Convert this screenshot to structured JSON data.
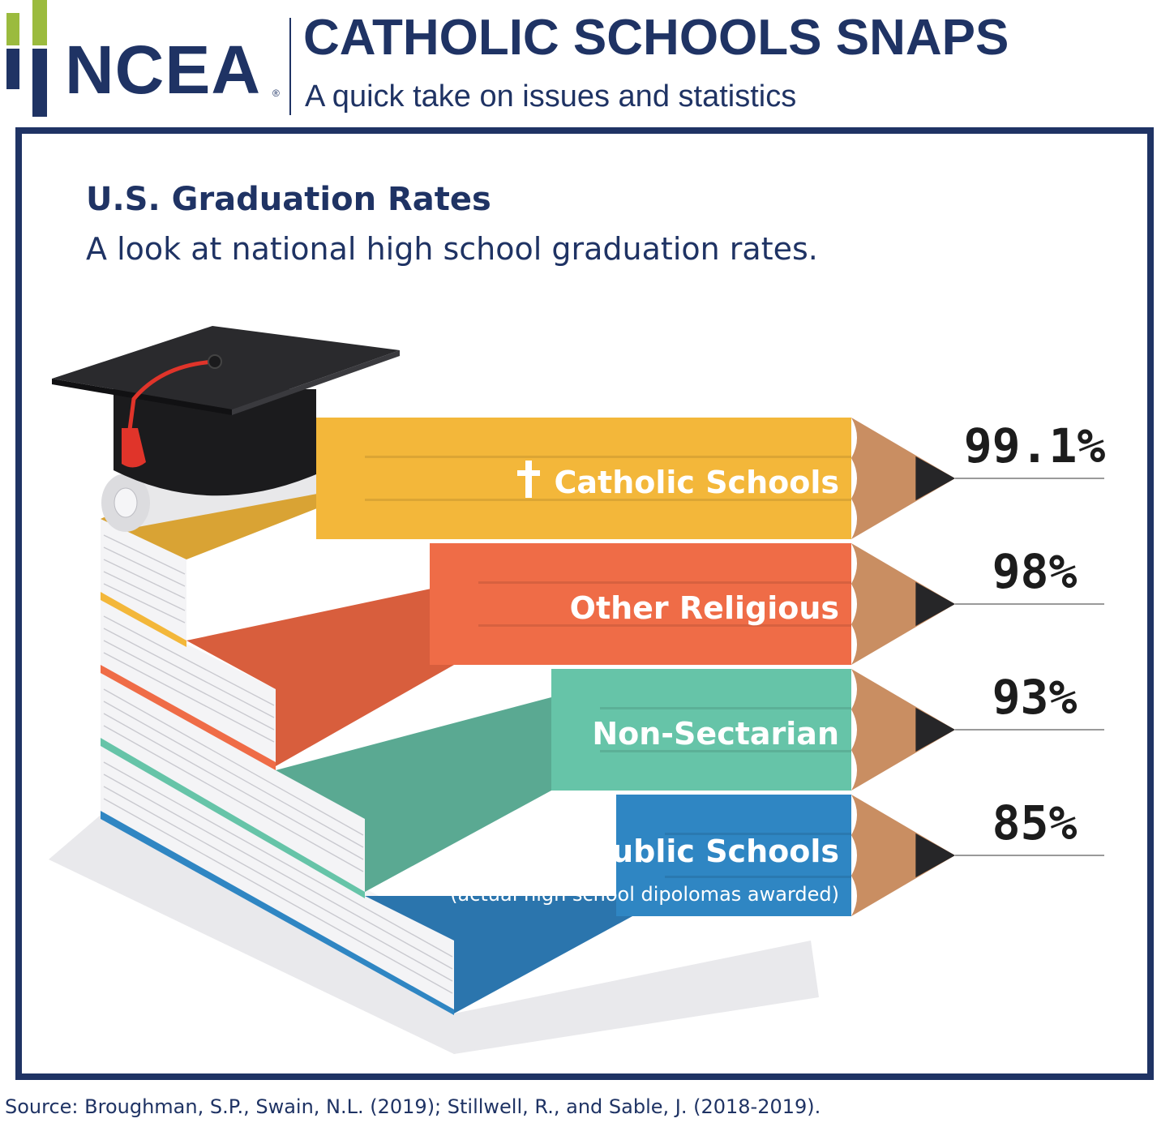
{
  "header": {
    "logo_text": "NCEA",
    "logo_mark": "®",
    "title": "CATHOLIC SCHOOLS SNAPS",
    "subtitle": "A quick take on issues and statistics"
  },
  "chart_data": {
    "type": "bar",
    "title": "U.S. Graduation Rates",
    "subtitle": "A look at national high school graduation rates.",
    "categories": [
      "Catholic Schools",
      "Other Religious",
      "Non-Sectarian",
      "Public Schools"
    ],
    "category_notes": [
      "",
      "",
      "",
      "(actual high school dipolomas awarded)"
    ],
    "category_icons": [
      "cross-icon",
      "",
      "",
      ""
    ],
    "values": [
      99.1,
      98,
      93,
      85
    ],
    "value_labels": [
      "99.1%",
      "98%",
      "93%",
      "85%"
    ],
    "unit": "%",
    "colors": [
      "#f3b73a",
      "#ef6c47",
      "#66c4a8",
      "#2f86c3"
    ],
    "orientation": "horizontal",
    "grid": false,
    "legend": "none"
  },
  "footer": {
    "source": "Source:  Broughman, S.P., Swain, N.L. (2019); Stillwell, R., and Sable, J. (2018-2019)."
  }
}
